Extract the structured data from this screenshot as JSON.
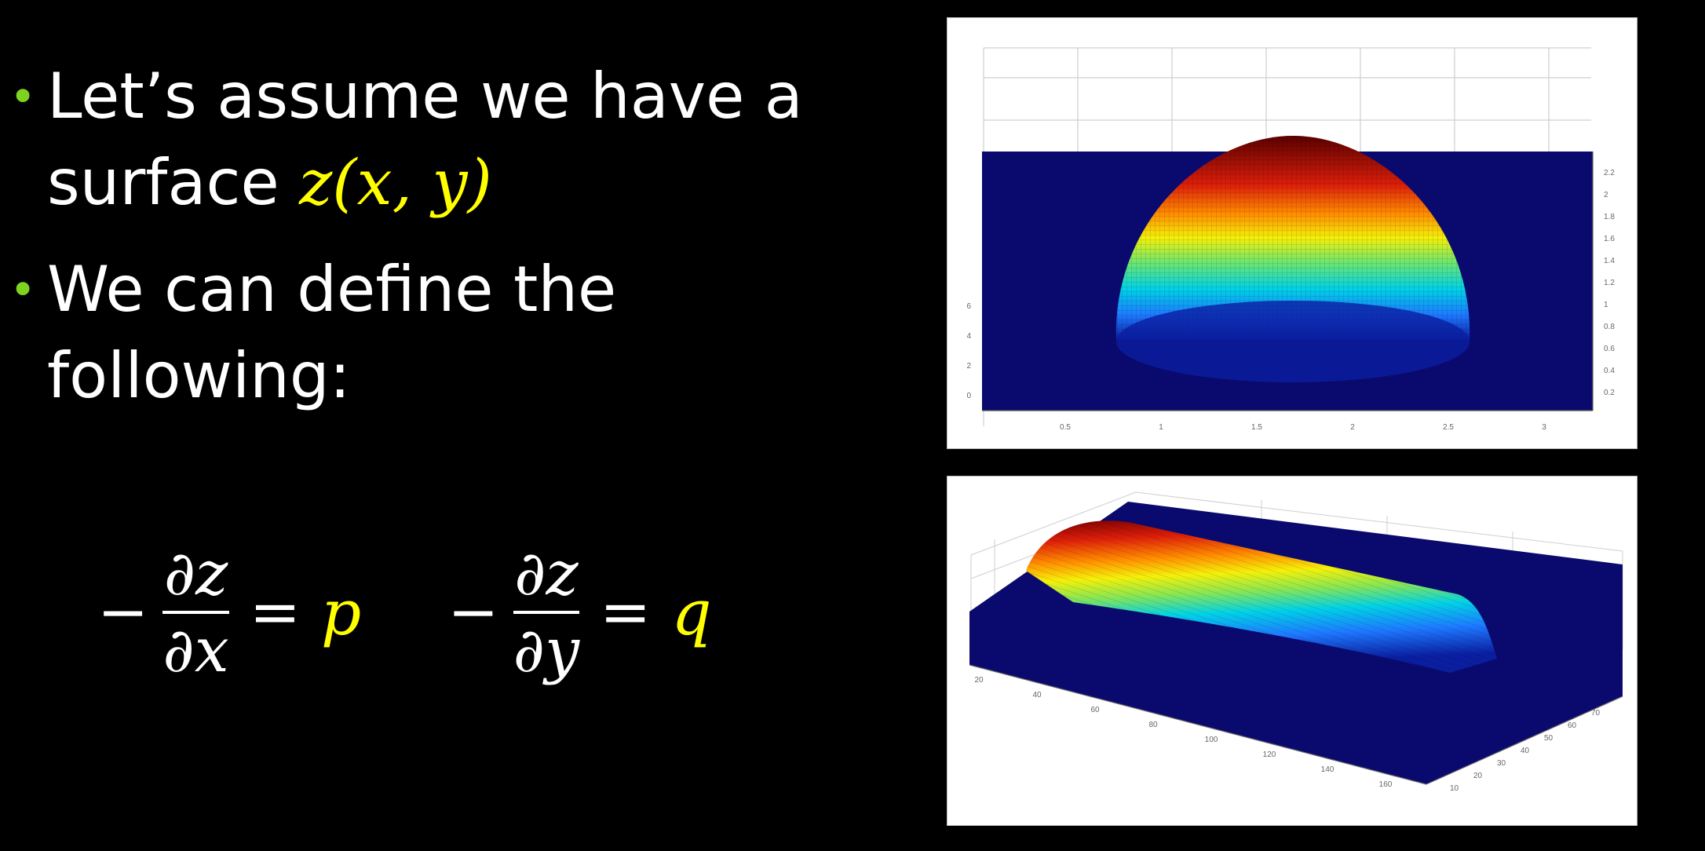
{
  "bullets": [
    {
      "text_before": "Let’s assume we have a surface ",
      "math": "z(x, y)"
    },
    {
      "text_before": "We can define the following:",
      "math": ""
    }
  ],
  "bullet_symbol": "•",
  "equations": [
    {
      "minus": "−",
      "numerator": "∂z",
      "denominator": "∂x",
      "equals": "=",
      "rhs": "p"
    },
    {
      "minus": "−",
      "numerator": "∂z",
      "denominator": "∂y",
      "equals": "=",
      "rhs": "q"
    }
  ],
  "figure_top": {
    "x_ticks": [
      "0.5",
      "1",
      "1.5",
      "2",
      "2.5",
      "3"
    ],
    "y_ticks": [
      "2.2",
      "2",
      "1.8",
      "1.6",
      "1.4",
      "1.2",
      "1",
      "0.8",
      "0.6",
      "0.4",
      "0.2"
    ],
    "left_ticks": [
      "6",
      "4",
      "2",
      "0"
    ]
  },
  "figure_bottom": {
    "x_ticks": [
      "20",
      "40",
      "60",
      "80",
      "100",
      "120",
      "140",
      "160"
    ],
    "y_ticks": [
      "10",
      "20",
      "30",
      "40",
      "50",
      "60",
      "70"
    ]
  },
  "colors": {
    "background": "#000000",
    "text": "#ffffff",
    "math": "#ffff00",
    "bullet": "#7ed321",
    "plot_floor": "#0a0a6e"
  }
}
